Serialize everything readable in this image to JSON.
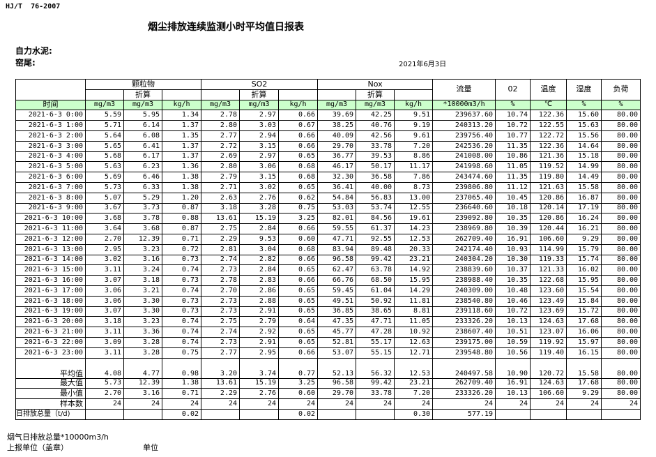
{
  "header": {
    "standard": "HJ/T  76-2007",
    "title": "烟尘排放连续监测小时平均值日报表",
    "company": "自力水泥:",
    "unit": "窑尾:",
    "date": "2021年6月3日"
  },
  "table": {
    "groups": [
      "颗粒物",
      "SO2",
      "Nox"
    ],
    "converted": "折算",
    "single_headers": [
      "流量",
      "02",
      "温度",
      "湿度",
      "负荷"
    ],
    "time_header": "时间",
    "units": [
      "mg/m3",
      "mg/m3",
      "kg/h",
      "mg/m3",
      "mg/m3",
      "kg/h",
      "mg/m3",
      "mg/m3",
      "kg/h",
      "*10000m3/h",
      "%",
      "℃",
      "%",
      "%"
    ],
    "rows": [
      [
        "2021-6-3 0:00",
        "5.59",
        "5.95",
        "1.34",
        "2.78",
        "2.97",
        "0.66",
        "39.69",
        "42.25",
        "9.51",
        "239637.60",
        "10.74",
        "122.36",
        "15.60",
        "80.00"
      ],
      [
        "2021-6-3 1:00",
        "5.71",
        "6.14",
        "1.37",
        "2.80",
        "3.03",
        "0.67",
        "38.25",
        "40.76",
        "9.19",
        "240313.20",
        "10.72",
        "122.55",
        "15.63",
        "80.00"
      ],
      [
        "2021-6-3 2:00",
        "5.64",
        "6.08",
        "1.35",
        "2.77",
        "2.94",
        "0.66",
        "40.09",
        "42.56",
        "9.61",
        "239756.40",
        "10.77",
        "122.72",
        "15.56",
        "80.00"
      ],
      [
        "2021-6-3 3:00",
        "5.65",
        "6.41",
        "1.37",
        "2.72",
        "3.15",
        "0.66",
        "29.70",
        "33.78",
        "7.20",
        "242536.20",
        "11.35",
        "122.36",
        "14.64",
        "80.00"
      ],
      [
        "2021-6-3 4:00",
        "5.68",
        "6.17",
        "1.37",
        "2.69",
        "2.97",
        "0.65",
        "36.77",
        "39.53",
        "8.86",
        "241008.00",
        "10.86",
        "121.36",
        "15.18",
        "80.00"
      ],
      [
        "2021-6-3 5:00",
        "5.63",
        "6.23",
        "1.36",
        "2.80",
        "3.06",
        "0.68",
        "46.17",
        "50.17",
        "11.17",
        "241998.60",
        "11.05",
        "119.52",
        "14.99",
        "80.00"
      ],
      [
        "2021-6-3 6:00",
        "5.69",
        "6.46",
        "1.38",
        "2.79",
        "3.15",
        "0.68",
        "32.30",
        "36.58",
        "7.86",
        "243474.60",
        "11.35",
        "119.80",
        "14.49",
        "80.00"
      ],
      [
        "2021-6-3 7:00",
        "5.73",
        "6.33",
        "1.38",
        "2.71",
        "3.02",
        "0.65",
        "36.41",
        "40.00",
        "8.73",
        "239806.80",
        "11.12",
        "121.63",
        "15.58",
        "80.00"
      ],
      [
        "2021-6-3 8:00",
        "5.07",
        "5.29",
        "1.20",
        "2.63",
        "2.76",
        "0.62",
        "54.84",
        "56.83",
        "13.00",
        "237065.40",
        "10.45",
        "120.86",
        "16.87",
        "80.00"
      ],
      [
        "2021-6-3 9:00",
        "3.67",
        "3.73",
        "0.87",
        "3.18",
        "3.28",
        "0.75",
        "53.03",
        "53.74",
        "12.55",
        "236640.60",
        "10.18",
        "120.14",
        "17.19",
        "80.00"
      ],
      [
        "2021-6-3 10:00",
        "3.68",
        "3.78",
        "0.88",
        "13.61",
        "15.19",
        "3.25",
        "82.01",
        "84.56",
        "19.61",
        "239092.80",
        "10.35",
        "120.86",
        "16.24",
        "80.00"
      ],
      [
        "2021-6-3 11:00",
        "3.64",
        "3.68",
        "0.87",
        "2.75",
        "2.84",
        "0.66",
        "59.55",
        "61.37",
        "14.23",
        "238969.80",
        "10.39",
        "120.44",
        "16.21",
        "80.00"
      ],
      [
        "2021-6-3 12:00",
        "2.70",
        "12.39",
        "0.71",
        "2.29",
        "9.53",
        "0.60",
        "47.71",
        "92.55",
        "12.53",
        "262709.40",
        "16.91",
        "106.60",
        "9.29",
        "80.00"
      ],
      [
        "2021-6-3 13:00",
        "2.95",
        "3.23",
        "0.72",
        "2.81",
        "3.04",
        "0.68",
        "83.94",
        "89.48",
        "20.33",
        "242174.40",
        "10.93",
        "114.99",
        "15.79",
        "80.00"
      ],
      [
        "2021-6-3 14:00",
        "3.02",
        "3.16",
        "0.73",
        "2.74",
        "2.82",
        "0.66",
        "96.58",
        "99.42",
        "23.21",
        "240304.20",
        "10.30",
        "119.33",
        "15.74",
        "80.00"
      ],
      [
        "2021-6-3 15:00",
        "3.11",
        "3.24",
        "0.74",
        "2.73",
        "2.84",
        "0.65",
        "62.47",
        "63.78",
        "14.92",
        "238839.60",
        "10.37",
        "121.33",
        "16.02",
        "80.00"
      ],
      [
        "2021-6-3 16:00",
        "3.07",
        "3.18",
        "0.73",
        "2.78",
        "2.83",
        "0.66",
        "66.76",
        "68.50",
        "15.95",
        "238988.40",
        "10.35",
        "122.68",
        "15.95",
        "80.00"
      ],
      [
        "2021-6-3 17:00",
        "3.06",
        "3.21",
        "0.74",
        "2.70",
        "2.86",
        "0.65",
        "59.45",
        "61.04",
        "14.29",
        "240309.00",
        "10.48",
        "123.60",
        "15.54",
        "80.00"
      ],
      [
        "2021-6-3 18:00",
        "3.06",
        "3.30",
        "0.73",
        "2.73",
        "2.88",
        "0.65",
        "49.51",
        "50.92",
        "11.81",
        "238540.80",
        "10.46",
        "123.49",
        "15.84",
        "80.00"
      ],
      [
        "2021-6-3 19:00",
        "3.07",
        "3.30",
        "0.73",
        "2.73",
        "2.91",
        "0.65",
        "36.85",
        "38.65",
        "8.81",
        "239118.60",
        "10.72",
        "123.69",
        "15.72",
        "80.00"
      ],
      [
        "2021-6-3 20:00",
        "3.18",
        "3.23",
        "0.74",
        "2.75",
        "2.79",
        "0.64",
        "47.35",
        "47.71",
        "11.05",
        "233326.20",
        "10.13",
        "124.63",
        "17.68",
        "80.00"
      ],
      [
        "2021-6-3 21:00",
        "3.11",
        "3.36",
        "0.74",
        "2.74",
        "2.92",
        "0.65",
        "45.77",
        "47.28",
        "10.92",
        "238607.40",
        "10.51",
        "123.07",
        "16.06",
        "80.00"
      ],
      [
        "2021-6-3 22:00",
        "3.09",
        "3.28",
        "0.74",
        "2.73",
        "2.91",
        "0.65",
        "52.81",
        "55.17",
        "12.63",
        "239175.00",
        "10.59",
        "119.92",
        "15.97",
        "80.00"
      ],
      [
        "2021-6-3 23:00",
        "3.11",
        "3.28",
        "0.75",
        "2.77",
        "2.95",
        "0.66",
        "53.07",
        "55.15",
        "12.71",
        "239548.80",
        "10.56",
        "119.40",
        "16.15",
        "80.00"
      ]
    ],
    "summary": [
      {
        "label": "平均值",
        "values": [
          "4.08",
          "4.77",
          "0.98",
          "3.20",
          "3.74",
          "0.77",
          "52.13",
          "56.32",
          "12.53",
          "240497.58",
          "10.90",
          "120.72",
          "15.58",
          "80.00"
        ]
      },
      {
        "label": "最大值",
        "values": [
          "5.73",
          "12.39",
          "1.38",
          "13.61",
          "15.19",
          "3.25",
          "96.58",
          "99.42",
          "23.21",
          "262709.40",
          "16.91",
          "124.63",
          "17.68",
          "80.00"
        ]
      },
      {
        "label": "最小值",
        "values": [
          "2.70",
          "3.16",
          "0.71",
          "2.29",
          "2.76",
          "0.60",
          "29.70",
          "33.78",
          "7.20",
          "233326.20",
          "10.13",
          "106.60",
          "9.29",
          "80.00"
        ]
      },
      {
        "label": "样本数",
        "values": [
          "24",
          "24",
          "24",
          "24",
          "24",
          "24",
          "24",
          "24",
          "24",
          "24",
          "24",
          "24",
          "24",
          "24"
        ]
      }
    ],
    "daily_total": {
      "label": "日排放总量（t/d)",
      "values": [
        null,
        null,
        "0.02",
        null,
        null,
        "0.02",
        null,
        null,
        "0.30",
        "577.19",
        null,
        null,
        null,
        null
      ]
    }
  },
  "footer": {
    "flow_total": "烟气日排放总量*10000m3/h",
    "reporter": "上报单位（盖章）",
    "unit_label": "单位"
  }
}
